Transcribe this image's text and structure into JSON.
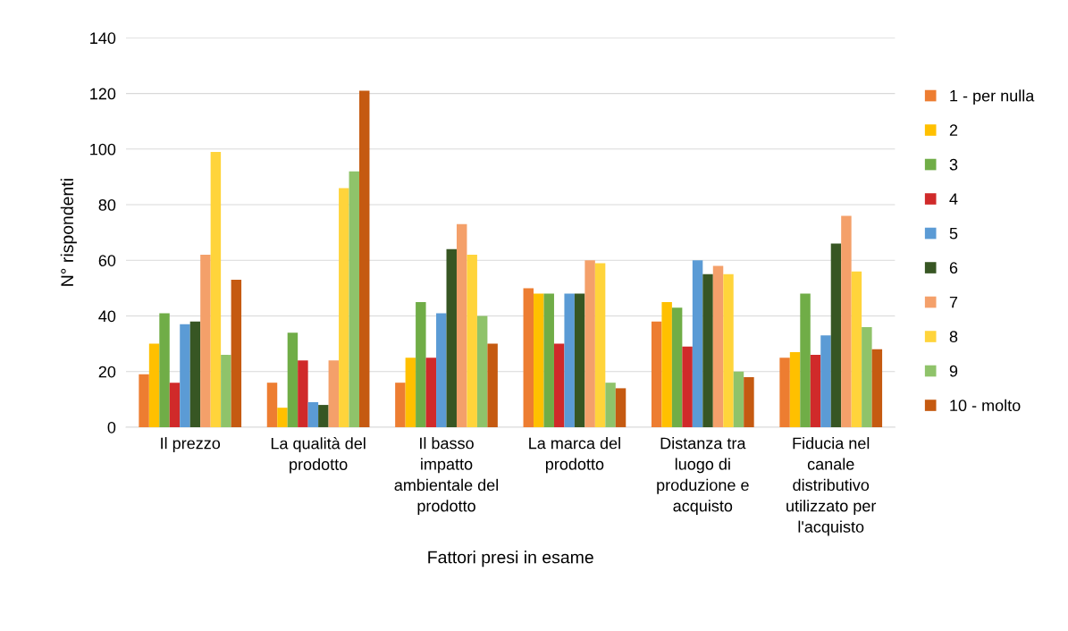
{
  "chart_data": {
    "type": "bar",
    "xlabel": "Fattori presi in esame",
    "ylabel": "N° rispondenti",
    "categories": [
      "Il prezzo",
      "La qualità del prodotto",
      "Il basso impatto ambientale del prodotto",
      "La marca del prodotto",
      "Distanza tra luogo di produzione e acquisto",
      "Fiducia nel canale distributivo utilizzato per l'acquisto"
    ],
    "series": [
      {
        "name": "1 - per nulla",
        "color": "#ed7d31",
        "values": [
          19,
          16,
          16,
          50,
          38,
          25
        ]
      },
      {
        "name": "2",
        "color": "#ffc000",
        "values": [
          30,
          7,
          25,
          48,
          45,
          27
        ]
      },
      {
        "name": "3",
        "color": "#70ad47",
        "values": [
          41,
          34,
          45,
          48,
          43,
          48
        ]
      },
      {
        "name": "4",
        "color": "#d02a2a",
        "values": [
          16,
          24,
          25,
          30,
          29,
          26
        ]
      },
      {
        "name": "5",
        "color": "#5b9bd5",
        "values": [
          37,
          9,
          41,
          48,
          60,
          33
        ]
      },
      {
        "name": "6",
        "color": "#375623",
        "values": [
          38,
          8,
          64,
          48,
          55,
          66
        ]
      },
      {
        "name": "7",
        "color": "#f4a06a",
        "values": [
          62,
          24,
          73,
          60,
          58,
          76
        ]
      },
      {
        "name": "8",
        "color": "#ffd43b",
        "values": [
          99,
          86,
          62,
          59,
          55,
          56
        ]
      },
      {
        "name": "9",
        "color": "#8fc36a",
        "values": [
          26,
          92,
          40,
          16,
          20,
          36
        ]
      },
      {
        "name": "10 - molto",
        "color": "#c55a11",
        "values": [
          53,
          121,
          30,
          14,
          18,
          28
        ]
      }
    ],
    "ylim": [
      0,
      140
    ],
    "yticks": [
      0,
      20,
      40,
      60,
      80,
      100,
      120,
      140
    ],
    "grid": "y",
    "legend": "right"
  }
}
